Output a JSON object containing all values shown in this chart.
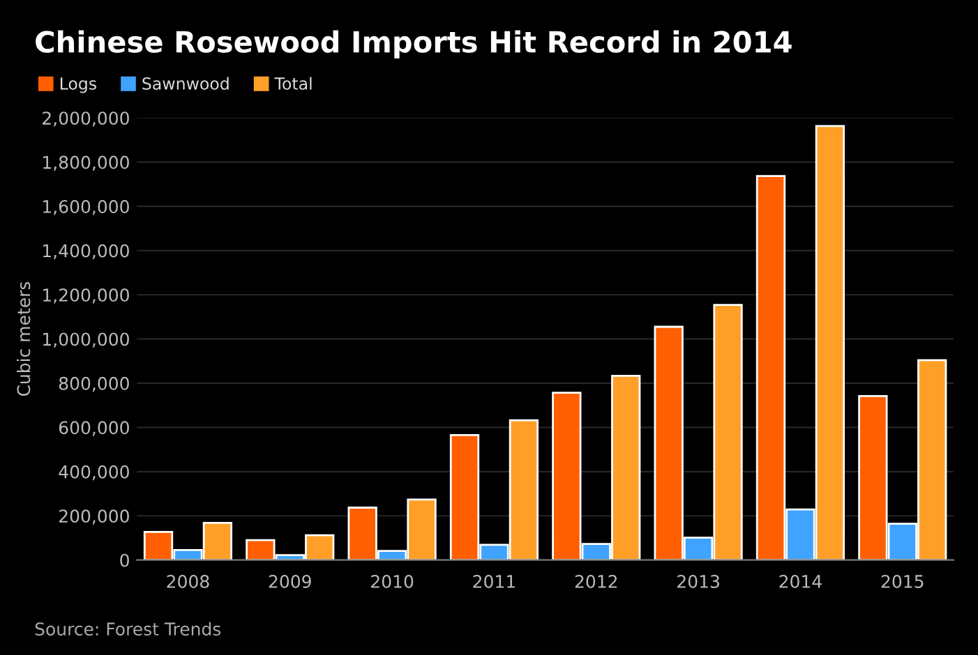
{
  "chart_data": {
    "type": "bar",
    "title": "Chinese Rosewood Imports Hit Record in 2014",
    "ylabel": "Cubic meters",
    "categories": [
      "2008",
      "2009",
      "2010",
      "2011",
      "2012",
      "2013",
      "2014",
      "2015"
    ],
    "series": [
      {
        "name": "Logs",
        "color": "#ff5f00",
        "values": [
          127000,
          90000,
          237000,
          565000,
          757000,
          1055000,
          1737000,
          742000
        ]
      },
      {
        "name": "Sawnwood",
        "color": "#3fa3ff",
        "values": [
          45000,
          22000,
          41000,
          69000,
          73000,
          101000,
          229000,
          164000
        ]
      },
      {
        "name": "Total",
        "color": "#ff9f28",
        "values": [
          168000,
          112000,
          274000,
          632000,
          833000,
          1154000,
          1963000,
          904000
        ]
      }
    ],
    "ylim": [
      0,
      2000000
    ],
    "yticks": [
      {
        "value": 0,
        "label": "0"
      },
      {
        "value": 200000,
        "label": "200,000"
      },
      {
        "value": 400000,
        "label": "400,000"
      },
      {
        "value": 600000,
        "label": "600,000"
      },
      {
        "value": 800000,
        "label": "800,000"
      },
      {
        "value": 1000000,
        "label": "1,000,000"
      },
      {
        "value": 1200000,
        "label": "1,200,000"
      },
      {
        "value": 1400000,
        "label": "1,400,000"
      },
      {
        "value": 1600000,
        "label": "1,600,000"
      },
      {
        "value": 1800000,
        "label": "1,800,000"
      },
      {
        "value": 2000000,
        "label": "2,000,000"
      }
    ],
    "grid": "y",
    "legend": "top left",
    "annotations": [
      "Source: Forest Trends"
    ]
  }
}
